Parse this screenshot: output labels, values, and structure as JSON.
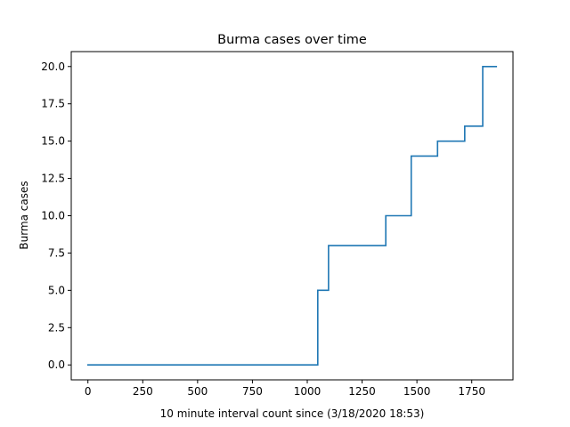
{
  "chart_data": {
    "type": "line",
    "step": true,
    "title": "Burma cases over time",
    "xlabel": "10 minute interval count since (3/18/2020 18:53)",
    "ylabel": "Burma cases",
    "xlim": [
      -76,
      1938
    ],
    "ylim": [
      -1.0,
      21.0
    ],
    "xticks": [
      0,
      250,
      500,
      750,
      1000,
      1250,
      1500,
      1750
    ],
    "xtick_labels": [
      "0",
      "250",
      "500",
      "750",
      "1000",
      "1250",
      "1500",
      "1750"
    ],
    "yticks": [
      0.0,
      2.5,
      5.0,
      7.5,
      10.0,
      12.5,
      15.0,
      17.5,
      20.0
    ],
    "ytick_labels": [
      "0.0",
      "2.5",
      "5.0",
      "7.5",
      "10.0",
      "12.5",
      "15.0",
      "17.5",
      "20.0"
    ],
    "grid": false,
    "color": "#1f77b4",
    "series": [
      {
        "points": [
          [
            0,
            0
          ],
          [
            1048,
            0
          ],
          [
            1048,
            5
          ],
          [
            1097,
            5
          ],
          [
            1097,
            8
          ],
          [
            1358,
            8
          ],
          [
            1358,
            10
          ],
          [
            1474,
            10
          ],
          [
            1474,
            14
          ],
          [
            1594,
            14
          ],
          [
            1594,
            15
          ],
          [
            1718,
            15
          ],
          [
            1718,
            16
          ],
          [
            1800,
            16
          ],
          [
            1800,
            20
          ],
          [
            1862,
            20
          ]
        ]
      }
    ]
  }
}
